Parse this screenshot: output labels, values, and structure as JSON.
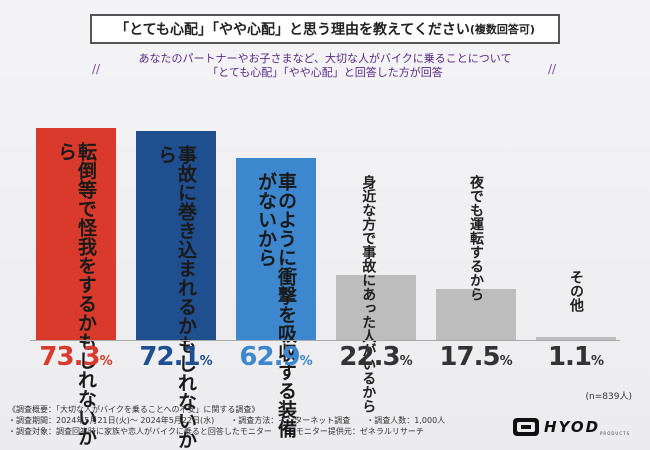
{
  "title": "「とても心配」「やや心配」と思う理由を教えてください",
  "title_suffix": "(複数回答可)",
  "subtitle_line1": "あなたのパートナーやお子さまなど、大切な人がバイクに乗ることについて",
  "subtitle_line2": "「とても心配」「やや心配」と回答した方が回答",
  "slash_left": "//",
  "slash_right": "//",
  "chart_data": {
    "type": "bar",
    "title": "「とても心配」「やや心配」と思う理由を教えてください(複数回答可)",
    "categories": [
      "転倒等で怪我をするかもしれないから",
      "事故に巻き込まれるかもしれないから",
      "車のように衝撃を吸収する装備がないから",
      "身近な方で事故にあった人がいるから",
      "夜でも運転するから",
      "その他"
    ],
    "label_lines": [
      [
        "転倒等で怪我をする",
        "かもしれないから"
      ],
      [
        "事故に巻き込まれる",
        "かもしれないから"
      ],
      [
        "車のように衝撃を吸収",
        "する装備がないから"
      ],
      [
        "身近な方で事故に",
        "あった人がいるから"
      ],
      [
        "夜でも運転するから"
      ],
      [
        "その他"
      ]
    ],
    "values": [
      73.3,
      72.1,
      62.9,
      22.3,
      17.5,
      1.1
    ],
    "value_labels": [
      "73.3",
      "72.1",
      "62.9",
      "22.3",
      "17.5",
      "1.1"
    ],
    "unit": "%",
    "ylim": [
      0,
      76
    ],
    "colors": [
      "#d93a2b",
      "#1f4f8f",
      "#3d87cf",
      "#bdbdbd",
      "#bdbdbd",
      "#bdbdbd"
    ],
    "label_colors": [
      "#1a1a1a",
      "#1a1a1a",
      "#1a1a1a",
      "#222222",
      "#222222",
      "#222222"
    ],
    "pct_colors": [
      "#d93a2b",
      "#1f4f8f",
      "#3d87cf",
      "#333333",
      "#333333",
      "#333333"
    ],
    "sample_note": "(n=839人)"
  },
  "notes": [
    "《調査概要：「大切な人がバイクを乗ることへの不安」に関する調査》",
    "・調査期間：2024年5月21日(火)～ 2024年5月22日(水)　　・調査方法：インターネット調査　　・調査人数：1,000人",
    "・調査対象：調査回答時に家族や恋人がバイクに乗ると回答したモニター　　・モニター提供元：ゼネラルリサーチ"
  ],
  "logo": "HYOD",
  "logo_sub": "PRODUCTS"
}
